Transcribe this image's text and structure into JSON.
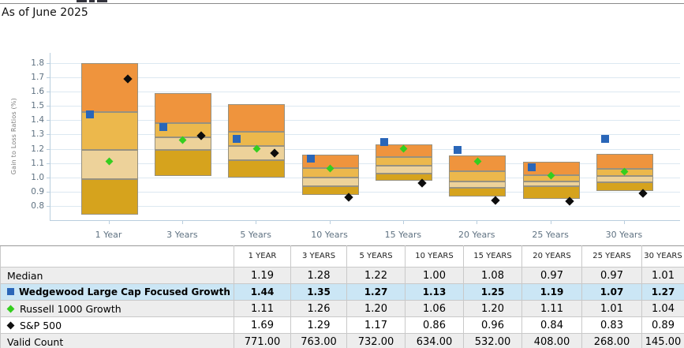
{
  "header": {
    "as_of": "As of June 2025"
  },
  "chart_data": {
    "type": "bar",
    "variant": "floating-quartile-box-chart-with-markers",
    "title": "",
    "xlabel": "",
    "ylabel": "Gain to Loss Ratios (%)",
    "categories": [
      "1 Year",
      "3 Years",
      "5 Years",
      "10 Years",
      "15 Years",
      "20 Years",
      "25 Years",
      "30 Years"
    ],
    "ylim": [
      0.7,
      1.872
    ],
    "grid": true,
    "y_tick_labels": [
      "1.8",
      "1.7",
      "1.6",
      "1.5",
      "1.4",
      "1.3",
      "1.2",
      "1.1",
      "1.0",
      "0.9",
      "0.8"
    ],
    "boxes": {
      "percentiles": [
        "p5",
        "p25",
        "median",
        "p75",
        "p95"
      ],
      "values": [
        [
          0.74,
          0.99,
          1.19,
          1.46,
          1.8
        ],
        [
          1.01,
          1.19,
          1.28,
          1.38,
          1.59
        ],
        [
          1.0,
          1.12,
          1.22,
          1.32,
          1.51
        ],
        [
          0.875,
          0.94,
          1.0,
          1.065,
          1.16
        ],
        [
          0.975,
          1.025,
          1.08,
          1.14,
          1.23
        ],
        [
          0.865,
          0.925,
          0.97,
          1.04,
          1.155
        ],
        [
          0.85,
          0.935,
          0.97,
          1.015,
          1.11
        ],
        [
          0.905,
          0.965,
          1.01,
          1.06,
          1.165
        ]
      ],
      "band_colors_top_to_bottom": [
        "#EF943D",
        "#ECB84C",
        "#EDD29A",
        "#D6A31D"
      ],
      "border_color": "#97917F"
    },
    "series": [
      {
        "name": "Wedgewood Large Cap Focused Growth",
        "marker": "square",
        "color": "#2A66B8",
        "values": [
          1.44,
          1.35,
          1.27,
          1.13,
          1.25,
          1.19,
          1.07,
          1.27
        ]
      },
      {
        "name": "Russell 1000 Growth",
        "marker": "diamond",
        "color": "#35CE1F",
        "values": [
          1.11,
          1.26,
          1.2,
          1.06,
          1.2,
          1.11,
          1.01,
          1.04
        ]
      },
      {
        "name": "S&P 500",
        "marker": "diamond",
        "color": "#0d0d0d",
        "values": [
          1.69,
          1.29,
          1.17,
          0.86,
          0.96,
          0.84,
          0.83,
          0.89
        ]
      }
    ],
    "legend_position": "none"
  },
  "table": {
    "column_headers": [
      "",
      "1 YEAR",
      "3 YEARS",
      "5 YEARS",
      "10 YEARS",
      "15 YEARS",
      "20 YEARS",
      "25 YEARS",
      "30 YEARS"
    ],
    "rows": [
      {
        "label": "Median",
        "icon": "",
        "style": "gray",
        "bold": false,
        "values": [
          "1.19",
          "1.28",
          "1.22",
          "1.00",
          "1.08",
          "0.97",
          "0.97",
          "1.01"
        ]
      },
      {
        "label": "Wedgewood Large Cap Focused Growth",
        "icon": "blue-square",
        "style": "blue",
        "bold": true,
        "values": [
          "1.44",
          "1.35",
          "1.27",
          "1.13",
          "1.25",
          "1.19",
          "1.07",
          "1.27"
        ]
      },
      {
        "label": "Russell 1000 Growth",
        "icon": "green-diamond",
        "style": "gray",
        "bold": false,
        "values": [
          "1.11",
          "1.26",
          "1.20",
          "1.06",
          "1.20",
          "1.11",
          "1.01",
          "1.04"
        ]
      },
      {
        "label": "S&P 500",
        "icon": "black-diamond",
        "style": "white",
        "bold": false,
        "values": [
          "1.69",
          "1.29",
          "1.17",
          "0.86",
          "0.96",
          "0.84",
          "0.83",
          "0.89"
        ]
      },
      {
        "label": "Valid Count",
        "icon": "",
        "style": "gray",
        "bold": false,
        "values": [
          "771.00",
          "763.00",
          "732.00",
          "634.00",
          "532.00",
          "408.00",
          "268.00",
          "145.00"
        ]
      }
    ],
    "icon_colors": {
      "blue-square": "#2A66B8",
      "green-diamond": "#35CE1F",
      "black-diamond": "#111111"
    },
    "highlight_row_color": "#cbe6f5",
    "stripe_row_color": "#ededed"
  }
}
